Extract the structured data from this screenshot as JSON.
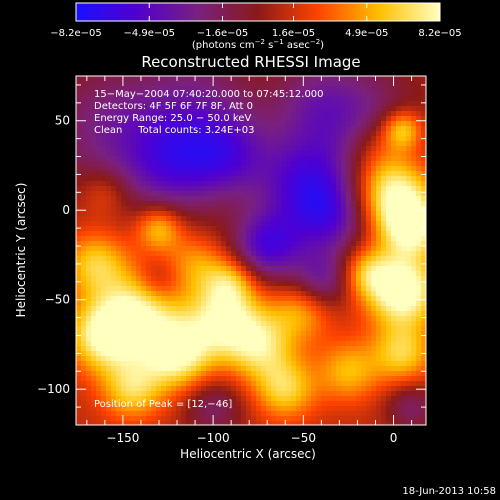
{
  "chart_data": {
    "type": "heatmap",
    "title": "Reconstructed RHESSI Image",
    "xlabel": "Heliocentric X (arcsec)",
    "ylabel": "Heliocentric Y (arcsec)",
    "xlim": [
      -176,
      18
    ],
    "ylim": [
      -120,
      75
    ],
    "xticks": [
      -150,
      -100,
      -50,
      0
    ],
    "yticks": [
      50,
      0,
      -50,
      -100
    ],
    "xtick_labels": [
      "−150",
      "−100",
      "−50",
      "0"
    ],
    "ytick_labels": [
      "50",
      "0",
      "−50",
      "−100"
    ],
    "colorbar": {
      "min": -8.2e-05,
      "max": 8.2e-05,
      "tick_labels": [
        "−8.2e−05",
        "−4.9e−05",
        "−1.6e−05",
        "1.6e−05",
        "4.9e−05",
        "8.2e−05"
      ],
      "tick_values": [
        -8.2e-05,
        -4.9e-05,
        -1.6e-05,
        1.6e-05,
        4.9e-05,
        8.2e-05
      ],
      "colors": [
        "#1a10ff",
        "#5000d0",
        "#7a2080",
        "#8a1a18",
        "#ff4400",
        "#ffc000",
        "#ffffc0"
      ]
    },
    "units": {
      "prefix": "(photons cm",
      "exp1": "−2",
      "mid": " s",
      "exp2": "−1",
      "mid2": " asec",
      "exp3": "−2",
      "suffix": ")"
    },
    "annotations": [
      "15−May−2004 07:40:20.000 to 07:45:12.000",
      "Detectors: 4F 5F 6F 7F 8F, Att 0",
      "Energy Range: 25.0 − 50.0 keV",
      "Clean     Total counts: 3.24E+03"
    ],
    "peak_label": "Position of Peak = [12,−46]",
    "peak": [
      12,
      -46
    ],
    "blobs": [
      {
        "x": -155,
        "y": 45,
        "a": -0.5,
        "r": 28
      },
      {
        "x": -105,
        "y": 58,
        "a": -0.4,
        "r": 22
      },
      {
        "x": -120,
        "y": 25,
        "a": -0.6,
        "r": 20
      },
      {
        "x": -90,
        "y": 30,
        "a": -0.5,
        "r": 16
      },
      {
        "x": -50,
        "y": 15,
        "a": -0.7,
        "r": 18
      },
      {
        "x": -70,
        "y": -20,
        "a": -0.8,
        "r": 14
      },
      {
        "x": -35,
        "y": -5,
        "a": -0.6,
        "r": 15
      },
      {
        "x": -20,
        "y": 50,
        "a": -0.5,
        "r": 25
      },
      {
        "x": -45,
        "y": 60,
        "a": -0.3,
        "r": 18
      },
      {
        "x": 0,
        "y": 10,
        "a": 0.9,
        "r": 15
      },
      {
        "x": -10,
        "y": 35,
        "a": 0.3,
        "r": 12
      },
      {
        "x": 5,
        "y": 45,
        "a": 0.7,
        "r": 8
      },
      {
        "x": 10,
        "y": -10,
        "a": 0.8,
        "r": 12
      },
      {
        "x": 5,
        "y": -45,
        "a": 1.0,
        "r": 14
      },
      {
        "x": -15,
        "y": -35,
        "a": 0.5,
        "r": 10
      },
      {
        "x": -50,
        "y": -55,
        "a": 0.5,
        "r": 12
      },
      {
        "x": -75,
        "y": -75,
        "a": 0.7,
        "r": 14
      },
      {
        "x": -95,
        "y": -60,
        "a": 0.7,
        "r": 14
      },
      {
        "x": -120,
        "y": -80,
        "a": 0.9,
        "r": 14
      },
      {
        "x": -140,
        "y": -55,
        "a": 0.7,
        "r": 15
      },
      {
        "x": -160,
        "y": -70,
        "a": 0.9,
        "r": 14
      },
      {
        "x": -165,
        "y": -30,
        "a": 0.6,
        "r": 13
      },
      {
        "x": -145,
        "y": -100,
        "a": 0.6,
        "r": 12
      },
      {
        "x": -60,
        "y": -100,
        "a": 0.6,
        "r": 12
      },
      {
        "x": -25,
        "y": -90,
        "a": 0.5,
        "r": 12
      },
      {
        "x": 5,
        "y": -80,
        "a": 0.6,
        "r": 12
      },
      {
        "x": -110,
        "y": -30,
        "a": 0.4,
        "r": 12
      },
      {
        "x": -90,
        "y": -40,
        "a": 0.5,
        "r": 10
      },
      {
        "x": -130,
        "y": -10,
        "a": 0.6,
        "r": 9
      },
      {
        "x": -160,
        "y": 10,
        "a": 0.3,
        "r": 10
      },
      {
        "x": -40,
        "y": -40,
        "a": -0.6,
        "r": 12
      },
      {
        "x": -100,
        "y": -110,
        "a": -0.4,
        "r": 12
      },
      {
        "x": 10,
        "y": -110,
        "a": -0.4,
        "r": 10
      },
      {
        "x": -130,
        "y": -40,
        "a": -0.3,
        "r": 9
      }
    ],
    "footer": "18-Jun-2013 10:58"
  }
}
